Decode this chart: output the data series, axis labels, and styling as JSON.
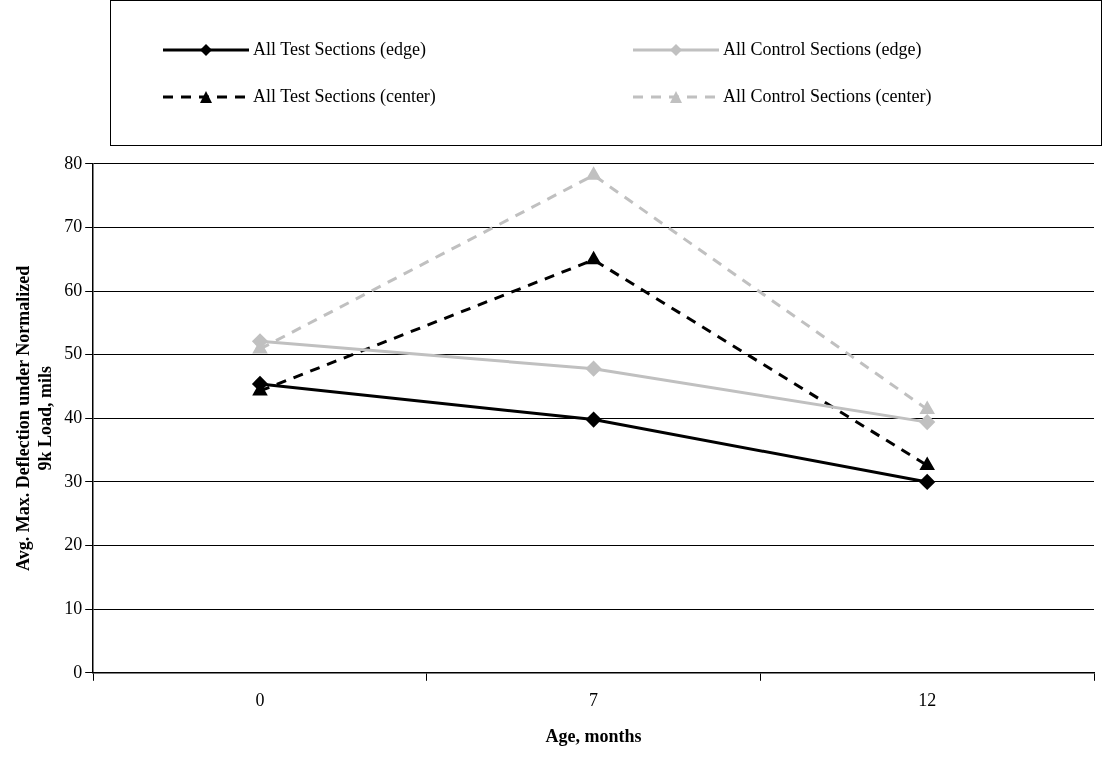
{
  "chart_data": {
    "type": "line",
    "xlabel": "Age, months",
    "ylabel": "Avg. Max. Deflection under Normalized 9k Load, mils",
    "categories": [
      "0",
      "7",
      "12"
    ],
    "series": [
      {
        "name": "All Test Sections (edge)",
        "color": "#000000",
        "marker": "diamond",
        "line_style": "solid",
        "values": [
          45.4,
          39.8,
          30.0
        ]
      },
      {
        "name": "All Control Sections (edge)",
        "color": "#c0c0c0",
        "marker": "diamond",
        "line_style": "solid",
        "values": [
          52.1,
          47.8,
          39.4
        ]
      },
      {
        "name": "All Test Sections (center)",
        "color": "#000000",
        "marker": "triangle",
        "line_style": "dashed",
        "values": [
          44.3,
          64.9,
          32.6
        ]
      },
      {
        "name": "All Control Sections (center)",
        "color": "#c0c0c0",
        "marker": "triangle",
        "line_style": "dashed",
        "values": [
          50.9,
          78.2,
          41.4
        ]
      }
    ],
    "ylim": [
      0,
      80
    ],
    "yticks": [
      0,
      10,
      20,
      30,
      40,
      50,
      60,
      70,
      80
    ],
    "grid": "y",
    "legend": "top"
  }
}
